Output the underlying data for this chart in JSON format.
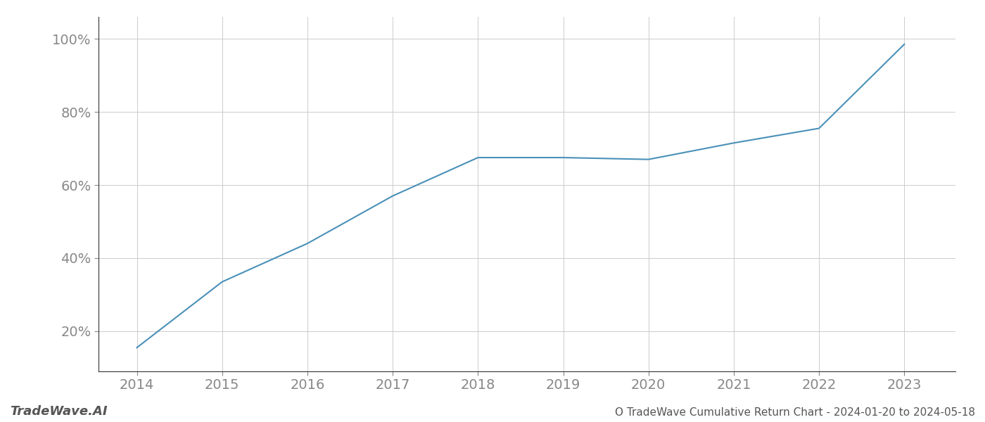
{
  "x_years": [
    2014,
    2015,
    2016,
    2017,
    2018,
    2019,
    2020,
    2021,
    2022,
    2023
  ],
  "y_values": [
    0.155,
    0.335,
    0.44,
    0.57,
    0.675,
    0.675,
    0.67,
    0.715,
    0.755,
    0.985
  ],
  "line_color": "#4a90b8",
  "line_width": 1.5,
  "background_color": "#ffffff",
  "grid_color": "#cccccc",
  "tick_color": "#888888",
  "spine_color": "#333333",
  "title_text": "O TradeWave Cumulative Return Chart - 2024-01-20 to 2024-05-18",
  "watermark_text": "TradeWave.AI",
  "watermark_color": "#555555",
  "title_color": "#555555",
  "xlim": [
    2013.55,
    2023.6
  ],
  "ylim": [
    0.09,
    1.06
  ],
  "yticks": [
    0.2,
    0.4,
    0.6,
    0.8,
    1.0
  ],
  "ytick_labels": [
    "20%",
    "40%",
    "60%",
    "80%",
    "100%"
  ],
  "xticks": [
    2014,
    2015,
    2016,
    2017,
    2018,
    2019,
    2020,
    2021,
    2022,
    2023
  ],
  "ytick_fontsize": 14,
  "xtick_fontsize": 14,
  "watermark_fontsize": 13,
  "title_fontsize": 11
}
